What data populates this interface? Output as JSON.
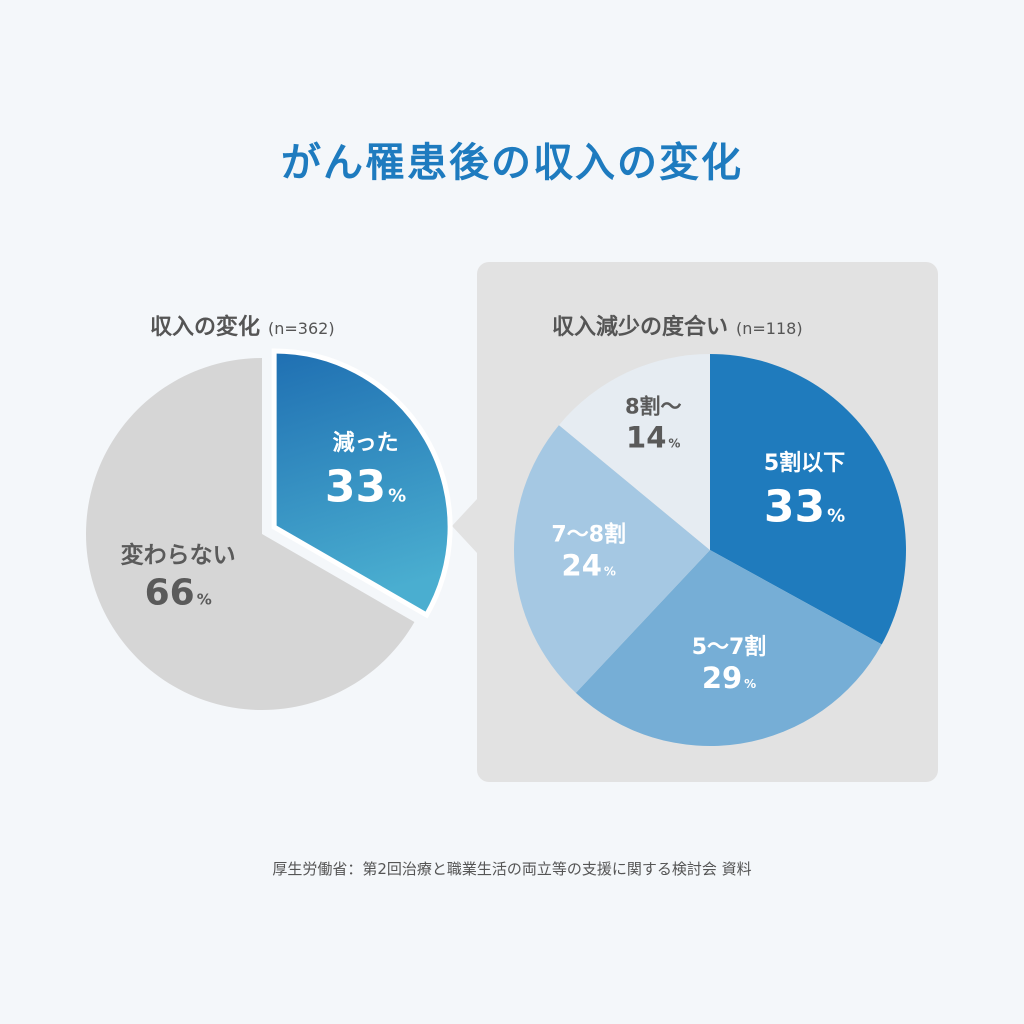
{
  "title": "がん罹患後の収入の変化",
  "source": "厚生労働省：第2回治療と職業生活の両立等の支援に関する検討会 資料",
  "chart_data": [
    {
      "type": "pie",
      "title": "収入の変化",
      "n_label": "(n=362)",
      "unit": "%",
      "slices": [
        {
          "label": "減った",
          "value": 33,
          "color": "#2a8bc2",
          "exploded": true
        },
        {
          "label": "変わらない",
          "value": 66,
          "color": "#d6d6d6",
          "text_color": "#5a5a5a"
        }
      ]
    },
    {
      "type": "pie",
      "title": "収入減少の度合い",
      "n_label": "(n=118)",
      "unit": "%",
      "slices": [
        {
          "label": "5割以下",
          "value": 33,
          "color": "#1f7bbd"
        },
        {
          "label": "5〜7割",
          "value": 29,
          "color": "#76aed6"
        },
        {
          "label": "7〜8割",
          "value": 24,
          "color": "#a5c8e3"
        },
        {
          "label": "8割〜",
          "value": 14,
          "color": "#e6ecf2",
          "text_color": "#5a5a5a"
        }
      ]
    }
  ]
}
